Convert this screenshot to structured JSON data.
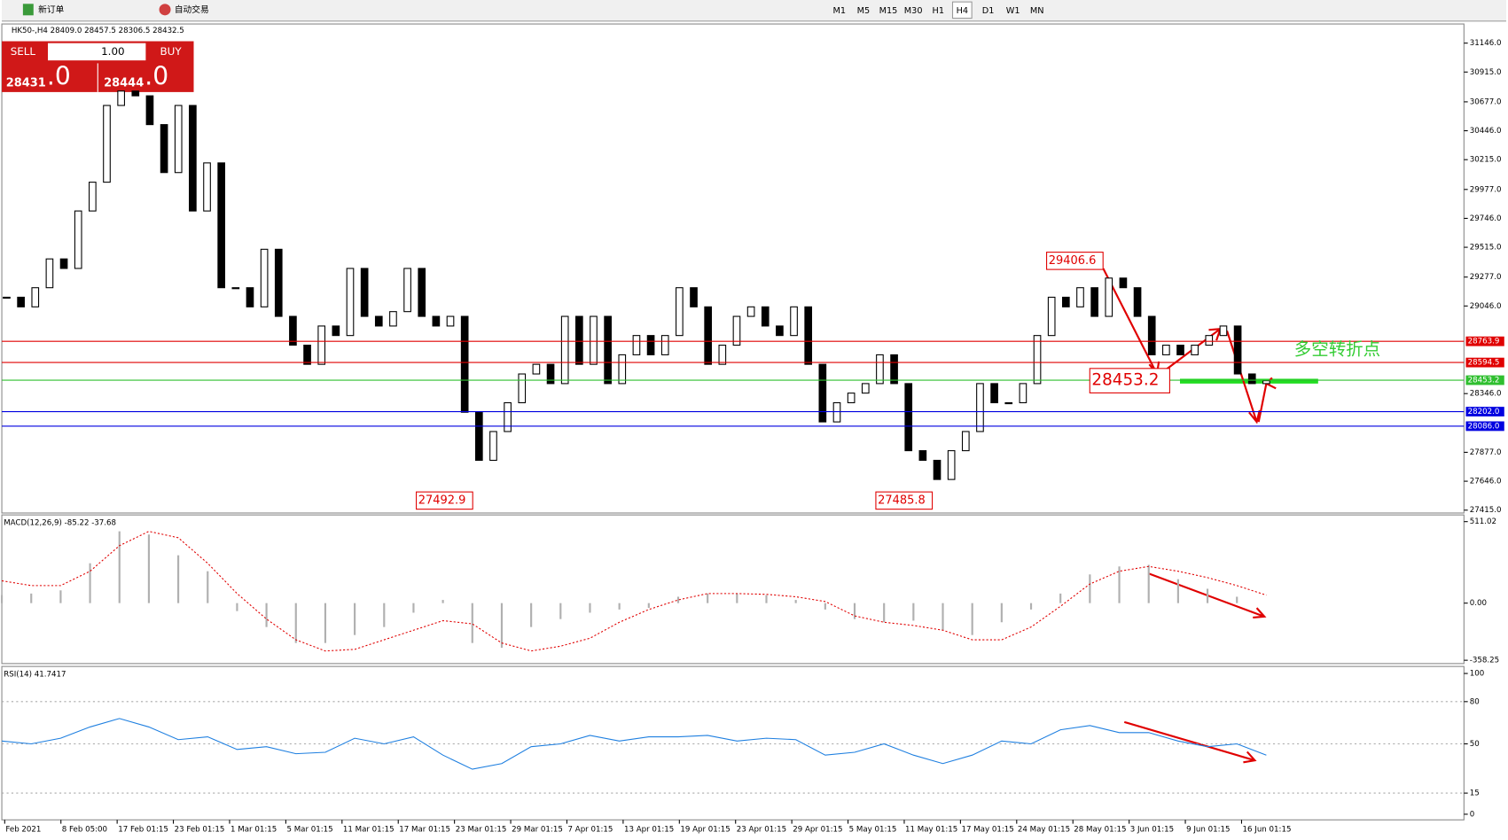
{
  "toolbar": {
    "new_order": "新订单",
    "auto_trading": "自动交易",
    "timeframes": [
      "M1",
      "M5",
      "M15",
      "M30",
      "H1",
      "H4",
      "D1",
      "W1",
      "MN"
    ],
    "active": "H4"
  },
  "trade_panel": {
    "sell": "SELL",
    "buy": "BUY",
    "lot": "1.00",
    "bid_main": "28431",
    "bid_frac": ".0",
    "ask_main": "28444",
    "ask_frac": ".0"
  },
  "chart_data": [
    {
      "type": "candlestick",
      "title": "HK50-,H4  28409.0 28457.5 28306.5 28432.5",
      "values": [
        29116,
        29039,
        29192,
        29422,
        29346,
        29805,
        30035,
        30648,
        30763,
        30725,
        30495,
        30112,
        30648,
        29805,
        30189,
        29192,
        29192,
        29039,
        29499,
        28963,
        28733,
        28580,
        28886,
        28810,
        29346,
        28963,
        28886,
        29001,
        29346,
        28963,
        28886,
        28963,
        28197,
        27813,
        28043,
        28273,
        28503,
        28580,
        28426,
        28963,
        28580,
        28963,
        28426,
        28656,
        28810,
        28656,
        28810,
        29192,
        29039,
        28580,
        28733,
        28963,
        29039,
        28886,
        28810,
        29039,
        28580,
        28120,
        28273,
        28350,
        28426,
        28656,
        28426,
        27890,
        27813,
        27660,
        27890,
        28043,
        28426,
        28273,
        28273,
        28426,
        28810,
        29116,
        29039,
        29192,
        28963,
        29269,
        29192,
        28963,
        28656,
        28733,
        28656,
        28733,
        28810,
        28886,
        28503,
        28426,
        28449
      ],
      "ylim": [
        27392,
        31299
      ],
      "yticks": [
        {
          "value": 31146,
          "label": "31146.0"
        },
        {
          "value": 30915,
          "label": "30915.0"
        },
        {
          "value": 30677,
          "label": "30677.0"
        },
        {
          "value": 30446,
          "label": "30446.0"
        },
        {
          "value": 30215,
          "label": "30215.0"
        },
        {
          "value": 29977,
          "label": "29977.0"
        },
        {
          "value": 29746,
          "label": "29746.0"
        },
        {
          "value": 29515,
          "label": "29515.0"
        },
        {
          "value": 29277,
          "label": "29277.0"
        },
        {
          "value": 29046,
          "label": "29046.0"
        },
        {
          "value": 28346,
          "label": "28346.0"
        },
        {
          "value": 27877,
          "label": "27877.0"
        },
        {
          "value": 27646,
          "label": "27646.0"
        },
        {
          "value": 27415,
          "label": "27415.0"
        }
      ],
      "levels": [
        {
          "value": 28763.9,
          "label": "28763.9",
          "color": "#e00000"
        },
        {
          "value": 28594.5,
          "label": "28594.5",
          "color": "#e00000"
        },
        {
          "value": 28453.2,
          "label": "28453.2",
          "color": "#2fbf2f"
        },
        {
          "value": 28202.0,
          "label": "28202.0",
          "color": "#0000e0"
        },
        {
          "value": 28086.0,
          "label": "28086.0",
          "color": "#0000e0"
        }
      ],
      "annotations": [
        29406.6,
        28453.2,
        27492.9,
        27485.8,
        "多空转折点"
      ]
    },
    {
      "type": "macd",
      "title": "MACD(12,26,9) -85.22 -37.68",
      "series": [
        {
          "name": "MACD",
          "color": "#b0b0b0",
          "values": [
            50,
            60,
            80,
            250,
            450,
            430,
            300,
            200,
            -50,
            -150,
            -250,
            -250,
            -200,
            -150,
            -60,
            20,
            -250,
            -280,
            -150,
            -100,
            -60,
            -40,
            -30,
            40,
            60,
            60,
            50,
            20,
            -40,
            -100,
            -120,
            -110,
            -170,
            -200,
            -120,
            -40,
            60,
            180,
            230,
            240,
            150,
            90,
            40,
            0
          ]
        },
        {
          "name": "Signal",
          "color": "#e00000",
          "values": [
            140,
            110,
            110,
            200,
            360,
            450,
            410,
            250,
            60,
            -100,
            -230,
            -300,
            -290,
            -230,
            -170,
            -110,
            -130,
            -250,
            -300,
            -270,
            -220,
            -120,
            -40,
            20,
            60,
            60,
            55,
            40,
            10,
            -80,
            -120,
            -140,
            -170,
            -230,
            -230,
            -150,
            -20,
            120,
            200,
            230,
            200,
            160,
            110,
            50
          ]
        }
      ],
      "ylim": [
        -379,
        553
      ],
      "yticks": [
        511.02,
        {
          "value": 0,
          "label": "0.00"
        },
        -358.25
      ]
    },
    {
      "type": "rsi",
      "title": "RSI(14) 41.7417",
      "series": [
        {
          "name": "RSI",
          "color": "#1e7fe0",
          "values": [
            52,
            50,
            54,
            62,
            68,
            62,
            53,
            55,
            46,
            48,
            43,
            44,
            54,
            50,
            55,
            42,
            32,
            36,
            48,
            50,
            56,
            52,
            55,
            55,
            56,
            52,
            54,
            53,
            42,
            44,
            50,
            42,
            36,
            42,
            52,
            50,
            60,
            63,
            58,
            58,
            52,
            48,
            50,
            42
          ]
        }
      ],
      "ylim": [
        -4,
        105
      ],
      "yticks": [
        100,
        80,
        50,
        15,
        0
      ]
    }
  ],
  "x_labels": [
    "Feb 2021",
    "8 Feb 05:00",
    "17 Feb 01:15",
    "23 Feb 01:15",
    "1 Mar 01:15",
    "5 Mar 01:15",
    "11 Mar 01:15",
    "17 Mar 01:15",
    "23 Mar 01:15",
    "29 Mar 01:15",
    "7 Apr 01:15",
    "13 Apr 01:15",
    "19 Apr 01:15",
    "23 Apr 01:15",
    "29 Apr 01:15",
    "5 May 01:15",
    "11 May 01:15",
    "17 May 01:15",
    "24 May 01:15",
    "28 May 01:15",
    "3 Jun 01:15",
    "9 Jun 01:15",
    "16 Jun 01:15"
  ]
}
